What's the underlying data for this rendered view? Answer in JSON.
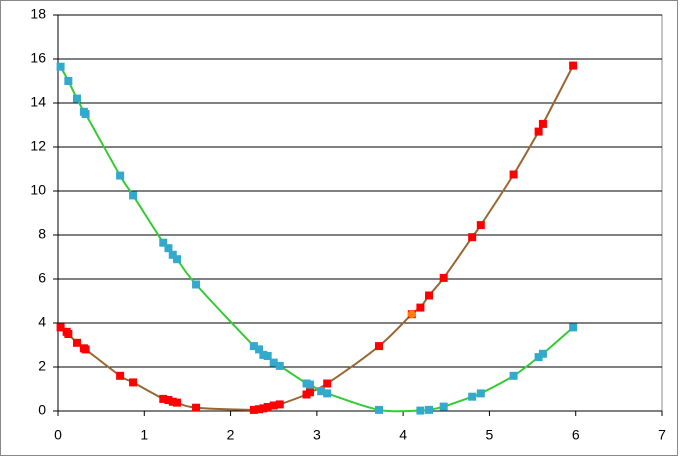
{
  "chart_data": {
    "type": "scatter",
    "xlim": [
      0,
      7
    ],
    "xticks": [
      0,
      1,
      2,
      3,
      4,
      5,
      6,
      7
    ],
    "ylim": [
      0,
      18
    ],
    "yticks": [
      0,
      2,
      4,
      6,
      8,
      10,
      12,
      14,
      16,
      18
    ],
    "grid": true,
    "series": [
      {
        "color": "#996633",
        "marker_color": "#ff0000",
        "line": true,
        "x": [
          0.03,
          0.1,
          0.12,
          0.22,
          0.3,
          0.32,
          0.72,
          0.87,
          1.22,
          1.28,
          1.33,
          1.38,
          1.6,
          2.27,
          2.33,
          2.38,
          2.43,
          2.5,
          2.57,
          2.88,
          2.92,
          3.12,
          3.72,
          4.1,
          4.2,
          4.3,
          4.47,
          4.8,
          4.9,
          5.28,
          5.57,
          5.62,
          5.97
        ],
        "values": [
          3.8,
          3.6,
          3.5,
          3.1,
          2.85,
          2.8,
          1.6,
          1.3,
          0.55,
          0.5,
          0.42,
          0.38,
          0.15,
          0.05,
          0.08,
          0.12,
          0.18,
          0.25,
          0.3,
          0.75,
          0.85,
          1.25,
          2.95,
          4.4,
          4.7,
          5.25,
          6.05,
          7.9,
          8.45,
          10.75,
          12.7,
          13.05,
          15.7
        ]
      },
      {
        "color": "#33cc33",
        "marker_color": "#33aacc",
        "line": true,
        "x": [
          0.03,
          0.12,
          0.22,
          0.3,
          0.32,
          0.72,
          0.87,
          1.22,
          1.28,
          1.33,
          1.38,
          1.6,
          2.27,
          2.33,
          2.38,
          2.43,
          2.5,
          2.57,
          2.88,
          2.92,
          3.05,
          3.12,
          3.72,
          4.2,
          4.3,
          4.47,
          4.8,
          4.9,
          5.28,
          5.57,
          5.62,
          5.97
        ],
        "values": [
          15.65,
          15.0,
          14.2,
          13.6,
          13.5,
          10.7,
          9.8,
          7.65,
          7.4,
          7.1,
          6.9,
          5.75,
          2.95,
          2.8,
          2.55,
          2.5,
          2.2,
          2.05,
          1.25,
          1.2,
          0.9,
          0.8,
          0.05,
          0.02,
          0.05,
          0.2,
          0.65,
          0.8,
          1.6,
          2.45,
          2.6,
          3.8
        ]
      },
      {
        "color": "#ff8000",
        "marker_color": "#ff8000",
        "line": false,
        "marker": "circle",
        "x": [
          4.1
        ],
        "values": [
          4.4
        ]
      }
    ]
  }
}
